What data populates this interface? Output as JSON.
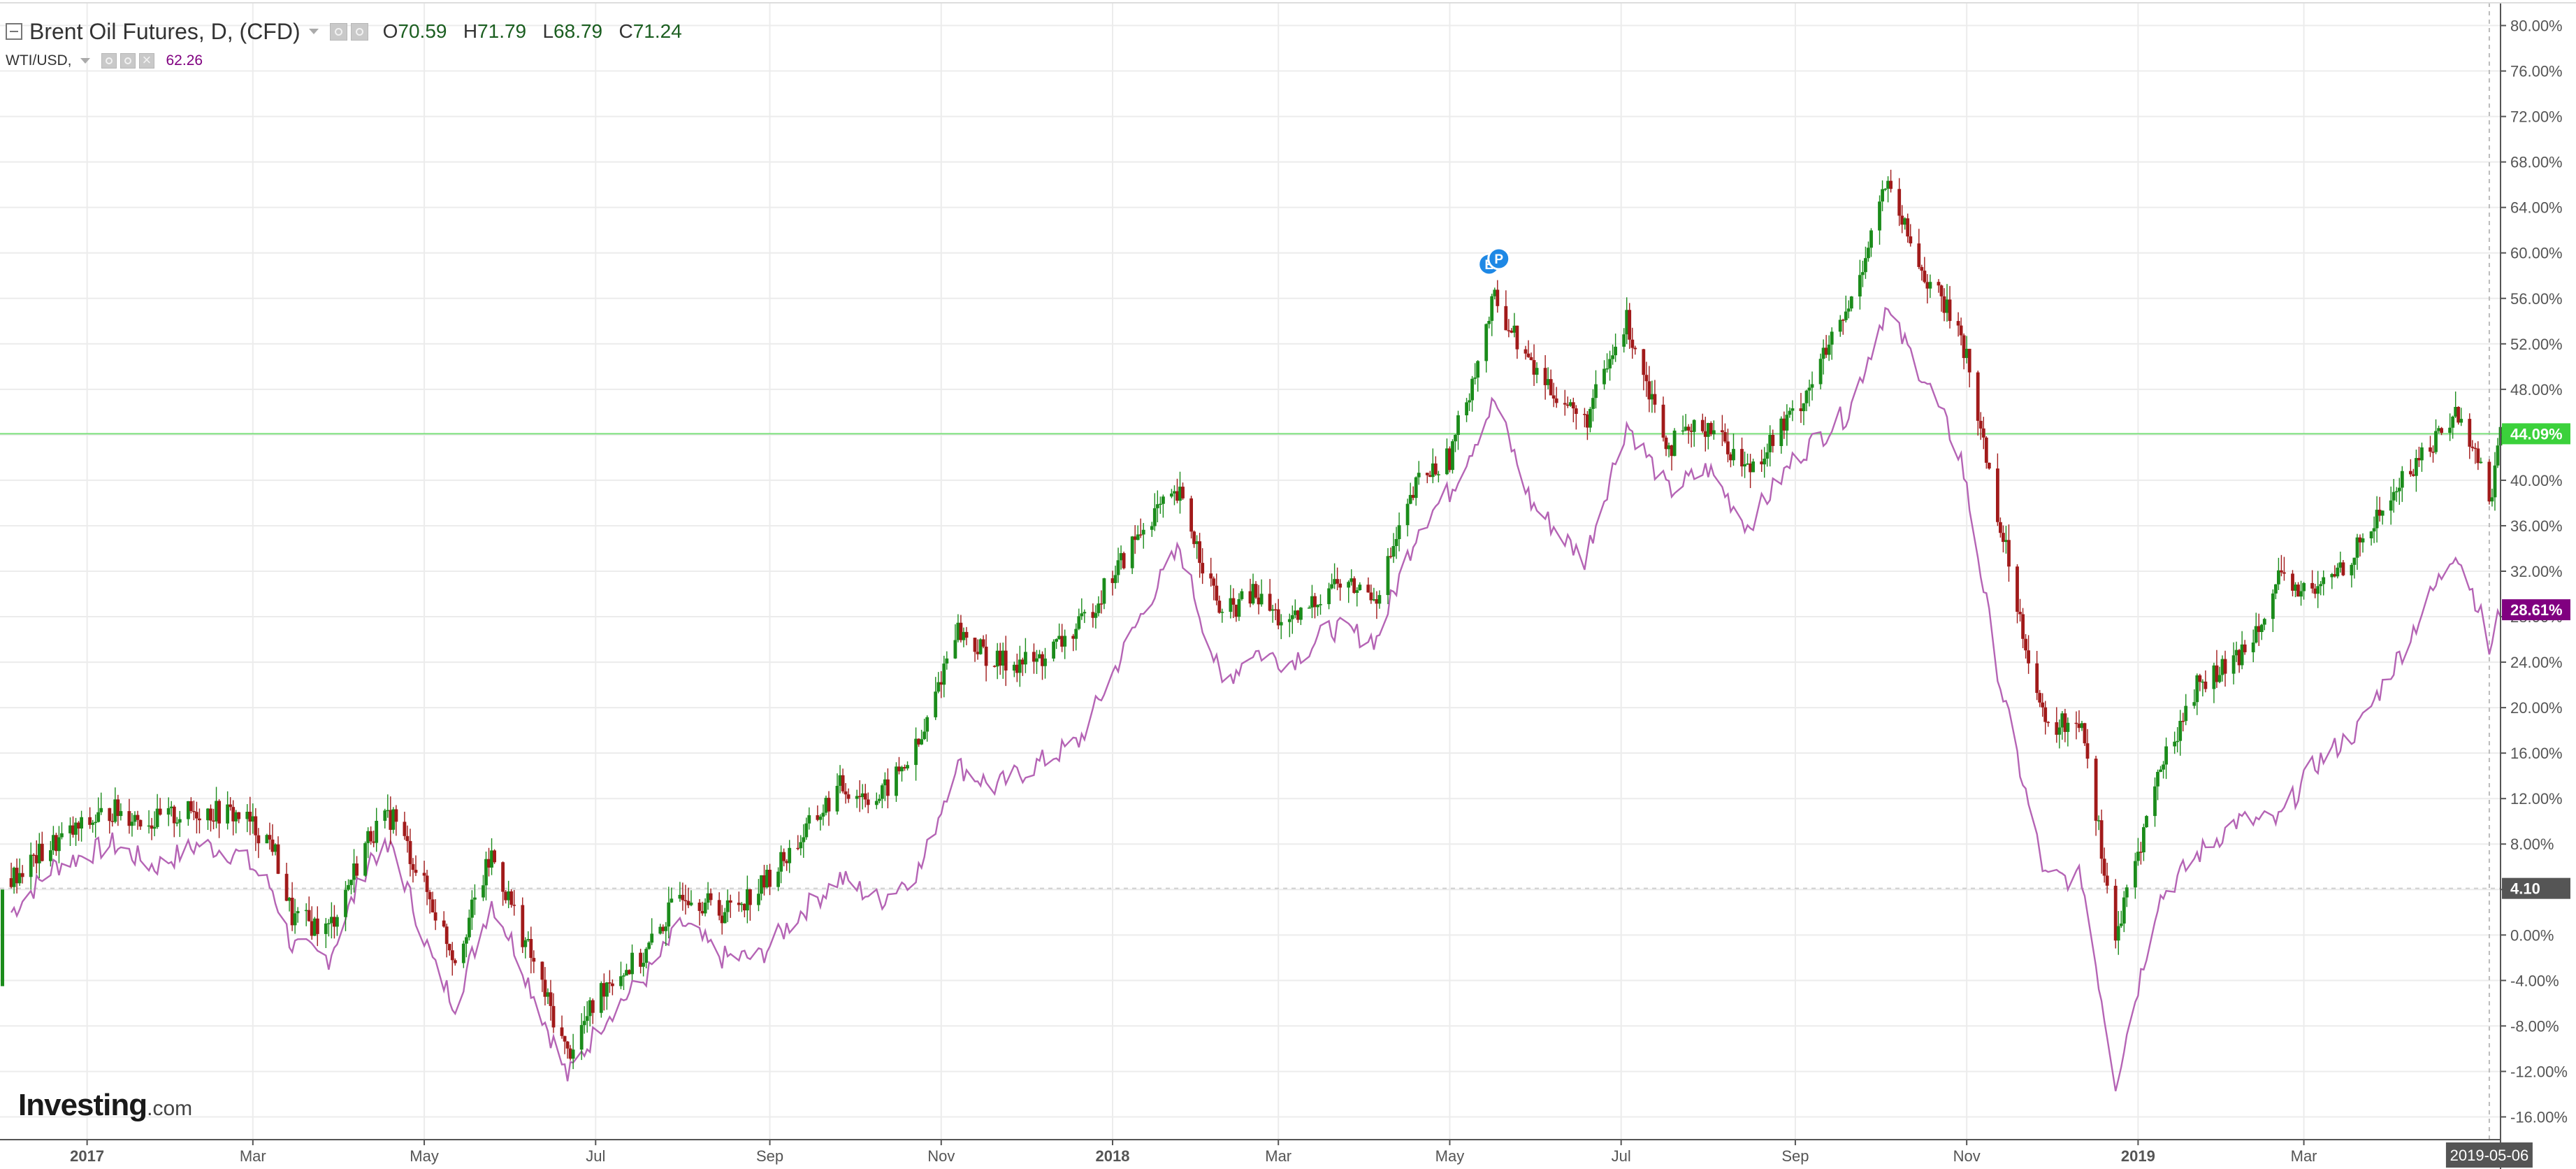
{
  "legend": {
    "symbol_title": "Brent Oil Futures, D, (CFD)",
    "ohlc": [
      {
        "key": "O",
        "value": "70.59"
      },
      {
        "key": "H",
        "value": "71.79"
      },
      {
        "key": "L",
        "value": "68.79"
      },
      {
        "key": "C",
        "value": "71.24"
      }
    ],
    "comparison_title": "WTI/USD,",
    "comparison_value": "62.26"
  },
  "logo": {
    "main": "Investing",
    "suffix": ".com"
  },
  "colors": {
    "up": "#1b8c1b",
    "down": "#a11a1a",
    "wti": "#b564b5",
    "last_price_line": "#7be07b",
    "last_price_badge": "#3bd13b",
    "wti_badge": "#800080",
    "base_badge": "#555555",
    "grid": "#ececec"
  },
  "chart_data": {
    "type": "line",
    "title": "Brent Oil Futures, D, (CFD)",
    "y_unit": "% change",
    "ylim": [
      -18,
      82
    ],
    "y_ticks": [
      "80.00%",
      "76.00%",
      "72.00%",
      "68.00%",
      "64.00%",
      "60.00%",
      "56.00%",
      "52.00%",
      "48.00%",
      "44.00%",
      "40.00%",
      "36.00%",
      "32.00%",
      "28.00%",
      "24.00%",
      "20.00%",
      "16.00%",
      "12.00%",
      "8.00%",
      "4.00%",
      "0.00%",
      "-4.00%",
      "-8.00%",
      "-12.00%",
      "-16.00%"
    ],
    "x_range": [
      "2016-12-01",
      "2019-05-10"
    ],
    "x_ticks": [
      {
        "label": "2017",
        "date": "2017-01-01",
        "bold": true
      },
      {
        "label": "Mar",
        "date": "2017-03-01",
        "bold": false
      },
      {
        "label": "May",
        "date": "2017-05-01",
        "bold": false
      },
      {
        "label": "Jul",
        "date": "2017-07-01",
        "bold": false
      },
      {
        "label": "Sep",
        "date": "2017-09-01",
        "bold": false
      },
      {
        "label": "Nov",
        "date": "2017-11-01",
        "bold": false
      },
      {
        "label": "2018",
        "date": "2018-01-01",
        "bold": true
      },
      {
        "label": "Mar",
        "date": "2018-03-01",
        "bold": false
      },
      {
        "label": "May",
        "date": "2018-05-01",
        "bold": false
      },
      {
        "label": "Jul",
        "date": "2018-07-01",
        "bold": false
      },
      {
        "label": "Sep",
        "date": "2018-09-01",
        "bold": false
      },
      {
        "label": "Nov",
        "date": "2018-11-01",
        "bold": false
      },
      {
        "label": "2019",
        "date": "2019-01-01",
        "bold": true
      },
      {
        "label": "Mar",
        "date": "2019-03-01",
        "bold": false
      }
    ],
    "crosshair_date": "2019-05-06",
    "crosshair_label": "2019-05-06",
    "series": [
      {
        "name": "Brent Oil Futures",
        "style": "candlestick",
        "last_label": "44.09%",
        "last_value": 44.09,
        "points": [
          [
            "2016-12-05",
            5.0
          ],
          [
            "2016-12-20",
            8.0
          ],
          [
            "2017-01-10",
            11.0
          ],
          [
            "2017-01-25",
            10.0
          ],
          [
            "2017-02-10",
            11.0
          ],
          [
            "2017-02-25",
            10.5
          ],
          [
            "2017-03-08",
            8.0
          ],
          [
            "2017-03-15",
            1.5
          ],
          [
            "2017-03-28",
            0.5
          ],
          [
            "2017-04-12",
            9.0
          ],
          [
            "2017-04-20",
            10.5
          ],
          [
            "2017-05-05",
            2.0
          ],
          [
            "2017-05-12",
            -2.0
          ],
          [
            "2017-05-25",
            7.0
          ],
          [
            "2017-06-02",
            2.0
          ],
          [
            "2017-06-21",
            -10.5
          ],
          [
            "2017-07-05",
            -4.0
          ],
          [
            "2017-07-18",
            -2.0
          ],
          [
            "2017-08-01",
            4.0
          ],
          [
            "2017-08-15",
            2.0
          ],
          [
            "2017-08-28",
            4.0
          ],
          [
            "2017-09-12",
            8.5
          ],
          [
            "2017-09-26",
            13.0
          ],
          [
            "2017-10-10",
            12.0
          ],
          [
            "2017-10-25",
            17.0
          ],
          [
            "2017-11-06",
            27.0
          ],
          [
            "2017-11-20",
            24.0
          ],
          [
            "2017-12-05",
            24.0
          ],
          [
            "2017-12-20",
            27.0
          ],
          [
            "2018-01-15",
            37.0
          ],
          [
            "2018-01-25",
            38.5
          ],
          [
            "2018-02-09",
            28.0
          ],
          [
            "2018-02-20",
            30.0
          ],
          [
            "2018-03-05",
            27.0
          ],
          [
            "2018-03-20",
            31.0
          ],
          [
            "2018-04-05",
            30.0
          ],
          [
            "2018-04-20",
            40.0
          ],
          [
            "2018-05-01",
            42.0
          ],
          [
            "2018-05-17",
            56.0
          ],
          [
            "2018-05-30",
            50.0
          ],
          [
            "2018-06-18",
            45.0
          ],
          [
            "2018-07-03",
            54.0
          ],
          [
            "2018-07-18",
            43.0
          ],
          [
            "2018-08-01",
            45.0
          ],
          [
            "2018-08-15",
            41.0
          ],
          [
            "2018-09-01",
            46.0
          ],
          [
            "2018-09-20",
            55.0
          ],
          [
            "2018-10-03",
            66.0
          ],
          [
            "2018-10-17",
            58.0
          ],
          [
            "2018-10-30",
            53.0
          ],
          [
            "2018-11-13",
            36.0
          ],
          [
            "2018-11-29",
            18.0
          ],
          [
            "2018-12-12",
            19.0
          ],
          [
            "2018-12-24",
            -0.5
          ],
          [
            "2019-01-08",
            14.0
          ],
          [
            "2019-01-22",
            22.0
          ],
          [
            "2019-02-05",
            24.0
          ],
          [
            "2019-02-20",
            31.0
          ],
          [
            "2019-03-05",
            30.0
          ],
          [
            "2019-03-20",
            34.0
          ],
          [
            "2019-04-05",
            40.0
          ],
          [
            "2019-04-24",
            46.0
          ],
          [
            "2019-05-02",
            42.0
          ],
          [
            "2019-05-06",
            38.0
          ],
          [
            "2019-05-10",
            44.09
          ]
        ]
      },
      {
        "name": "WTI/USD",
        "style": "line",
        "last_label": "28.61%",
        "last_value": 28.61,
        "points": [
          [
            "2016-12-05",
            2.0
          ],
          [
            "2016-12-20",
            6.0
          ],
          [
            "2017-01-10",
            8.0
          ],
          [
            "2017-01-25",
            6.0
          ],
          [
            "2017-02-10",
            8.0
          ],
          [
            "2017-02-25",
            7.0
          ],
          [
            "2017-03-08",
            4.0
          ],
          [
            "2017-03-15",
            -1.0
          ],
          [
            "2017-03-28",
            -2.0
          ],
          [
            "2017-04-12",
            7.0
          ],
          [
            "2017-04-20",
            7.5
          ],
          [
            "2017-05-05",
            -3.0
          ],
          [
            "2017-05-12",
            -6.0
          ],
          [
            "2017-05-25",
            3.0
          ],
          [
            "2017-06-02",
            -1.0
          ],
          [
            "2017-06-21",
            -12.5
          ],
          [
            "2017-07-05",
            -7.0
          ],
          [
            "2017-07-18",
            -4.0
          ],
          [
            "2017-08-01",
            1.0
          ],
          [
            "2017-08-15",
            -2.0
          ],
          [
            "2017-08-28",
            -2.0
          ],
          [
            "2017-09-12",
            2.0
          ],
          [
            "2017-09-26",
            5.0
          ],
          [
            "2017-10-10",
            3.0
          ],
          [
            "2017-10-25",
            6.0
          ],
          [
            "2017-11-06",
            15.0
          ],
          [
            "2017-11-20",
            13.0
          ],
          [
            "2017-12-05",
            15.0
          ],
          [
            "2017-12-20",
            17.0
          ],
          [
            "2018-01-15",
            30.0
          ],
          [
            "2018-01-25",
            34.0
          ],
          [
            "2018-02-09",
            22.0
          ],
          [
            "2018-02-20",
            25.0
          ],
          [
            "2018-03-05",
            24.0
          ],
          [
            "2018-03-20",
            27.0
          ],
          [
            "2018-04-05",
            26.0
          ],
          [
            "2018-04-20",
            36.0
          ],
          [
            "2018-05-01",
            39.0
          ],
          [
            "2018-05-17",
            47.0
          ],
          [
            "2018-05-30",
            38.0
          ],
          [
            "2018-06-18",
            33.0
          ],
          [
            "2018-07-03",
            45.0
          ],
          [
            "2018-07-18",
            39.0
          ],
          [
            "2018-08-01",
            41.0
          ],
          [
            "2018-08-15",
            36.0
          ],
          [
            "2018-09-01",
            42.0
          ],
          [
            "2018-09-20",
            46.0
          ],
          [
            "2018-10-03",
            55.0
          ],
          [
            "2018-10-17",
            49.0
          ],
          [
            "2018-10-30",
            42.0
          ],
          [
            "2018-11-13",
            22.0
          ],
          [
            "2018-11-29",
            5.0
          ],
          [
            "2018-12-12",
            5.0
          ],
          [
            "2018-12-24",
            -13.0
          ],
          [
            "2019-01-08",
            3.0
          ],
          [
            "2019-01-22",
            7.0
          ],
          [
            "2019-02-05",
            10.0
          ],
          [
            "2019-02-20",
            10.0
          ],
          [
            "2019-03-05",
            15.0
          ],
          [
            "2019-03-20",
            18.0
          ],
          [
            "2019-04-05",
            25.0
          ],
          [
            "2019-04-24",
            34.0
          ],
          [
            "2019-05-02",
            29.0
          ],
          [
            "2019-05-06",
            25.0
          ],
          [
            "2019-05-10",
            28.61
          ]
        ]
      }
    ],
    "base_label": "4.10",
    "base_value": 4.1,
    "event_markers": [
      {
        "date": "2018-05-15",
        "value": 59,
        "labels": [
          "E",
          "P"
        ]
      }
    ]
  }
}
